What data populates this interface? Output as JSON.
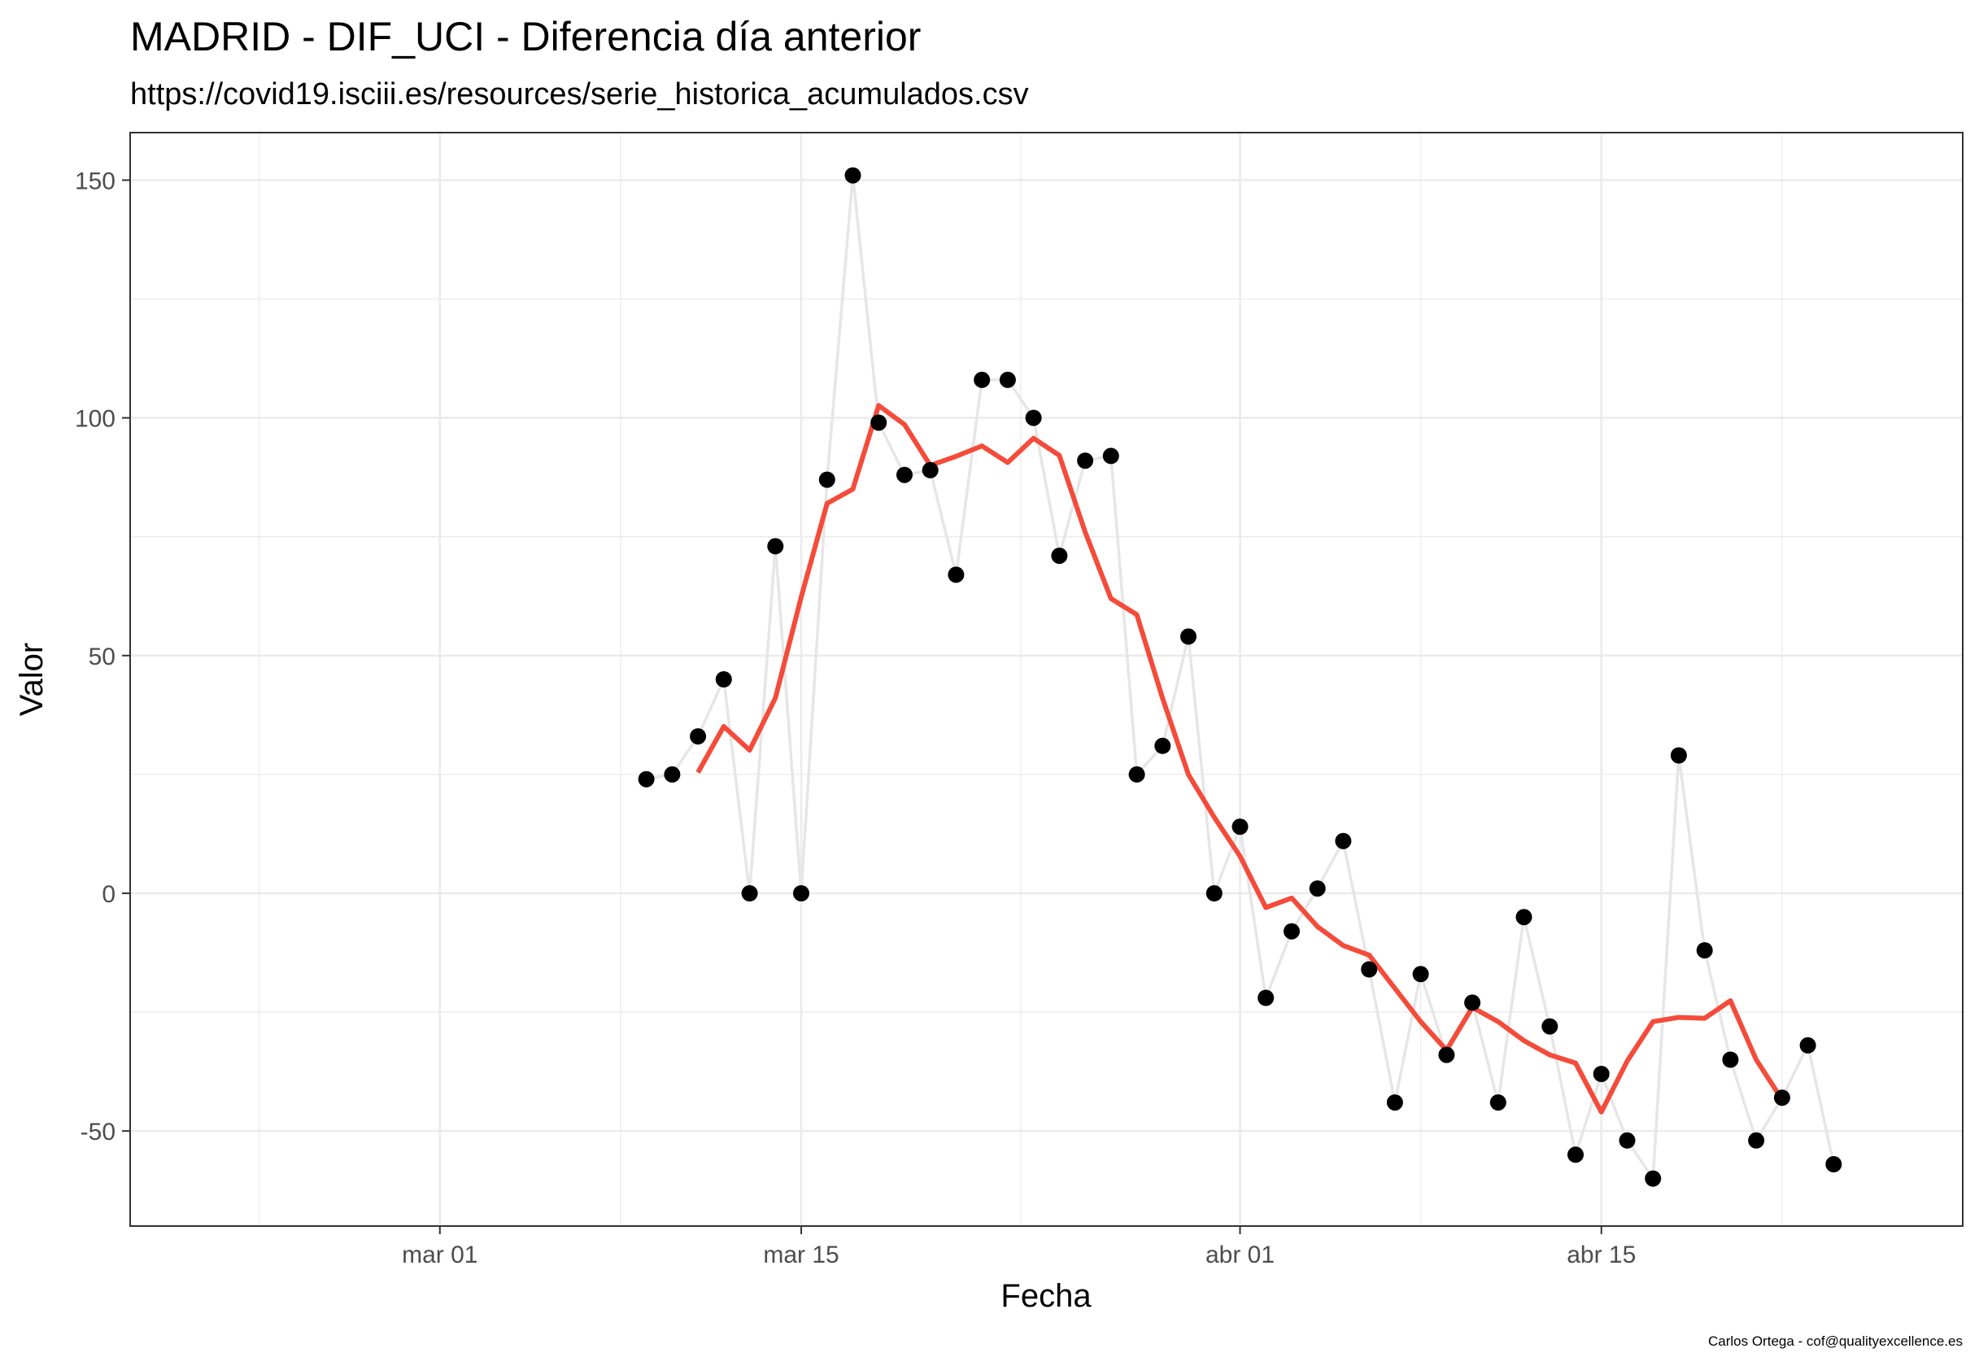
{
  "title": "MADRID - DIF_UCI - Diferencia día anterior",
  "subtitle": "https://covid19.isciii.es/resources/serie_historica_acumulados.csv",
  "caption": "Carlos Ortega - cof@qualityexcellence.es",
  "chart_data": {
    "type": "line",
    "xlabel": "Fecha",
    "ylabel": "Valor",
    "x_ticks": [
      "mar 01",
      "mar 15",
      "abr 01",
      "abr 15"
    ],
    "y_ticks": [
      "-50",
      "0",
      "50",
      "100",
      "150"
    ],
    "xlim": [
      "2020-02-18",
      "2020-04-29"
    ],
    "ylim": [
      -70,
      160
    ],
    "grid": true,
    "colors": {
      "points": "#000000",
      "raw_line": "#e6e6e6",
      "smooth_line": "#f44b3a",
      "panel_border": "#333333",
      "grid": "#ebebeb"
    },
    "series": [
      {
        "x": [
          "2020-03-09",
          "2020-03-10",
          "2020-03-11",
          "2020-03-12",
          "2020-03-13",
          "2020-03-14",
          "2020-03-15",
          "2020-03-16",
          "2020-03-17",
          "2020-03-18",
          "2020-03-19",
          "2020-03-20",
          "2020-03-21",
          "2020-03-22",
          "2020-03-23",
          "2020-03-24",
          "2020-03-25",
          "2020-03-26",
          "2020-03-27",
          "2020-03-28",
          "2020-03-29",
          "2020-03-30",
          "2020-03-31",
          "2020-04-01",
          "2020-04-02",
          "2020-04-03",
          "2020-04-04",
          "2020-04-05",
          "2020-04-06",
          "2020-04-07",
          "2020-04-08",
          "2020-04-09",
          "2020-04-10",
          "2020-04-11",
          "2020-04-12",
          "2020-04-13",
          "2020-04-14",
          "2020-04-15",
          "2020-04-16",
          "2020-04-17",
          "2020-04-18",
          "2020-04-19",
          "2020-04-20",
          "2020-04-21",
          "2020-04-22",
          "2020-04-23",
          "2020-04-24"
        ],
        "values": [
          24,
          25,
          33,
          45,
          0,
          73,
          0,
          87,
          151,
          99,
          88,
          89,
          67,
          108,
          108,
          100,
          71,
          91,
          92,
          25,
          31,
          54,
          0,
          14,
          -22,
          -8,
          1,
          11,
          -16,
          -44,
          -17,
          -34,
          -23,
          -44,
          -5,
          -28,
          -55,
          -38,
          -52,
          -60,
          29,
          -12,
          -35,
          -52,
          -43,
          -32,
          -57
        ]
      },
      {
        "x": [
          "2020-03-11",
          "2020-03-12",
          "2020-03-13",
          "2020-03-14",
          "2020-03-15",
          "2020-03-16",
          "2020-03-17",
          "2020-03-18",
          "2020-03-19",
          "2020-03-20",
          "2020-03-21",
          "2020-03-22",
          "2020-03-23",
          "2020-03-24",
          "2020-03-25",
          "2020-03-26",
          "2020-03-27",
          "2020-03-28",
          "2020-03-29",
          "2020-03-30",
          "2020-03-31",
          "2020-04-01",
          "2020-04-02",
          "2020-04-03",
          "2020-04-04",
          "2020-04-05",
          "2020-04-06",
          "2020-04-07",
          "2020-04-08",
          "2020-04-09",
          "2020-04-10",
          "2020-04-11",
          "2020-04-12",
          "2020-04-13",
          "2020-04-14",
          "2020-04-15",
          "2020-04-16",
          "2020-04-17",
          "2020-04-18",
          "2020-04-19",
          "2020-04-20",
          "2020-04-21",
          "2020-04-22"
        ],
        "values": [
          25.4,
          35.1,
          30.1,
          41.1,
          62.3,
          82,
          85,
          102.6,
          98.6,
          90,
          91.9,
          94.1,
          90.6,
          95.7,
          92.1,
          76,
          62,
          58.6,
          41,
          25,
          16,
          7.8,
          -3,
          -1,
          -7,
          -11,
          -13,
          -20,
          -27,
          -33,
          -24,
          -27,
          -31,
          -34,
          -35.7,
          -46,
          -35.3,
          -27,
          -26.1,
          -26.3,
          -22.6,
          -35,
          -43.4
        ]
      }
    ]
  }
}
